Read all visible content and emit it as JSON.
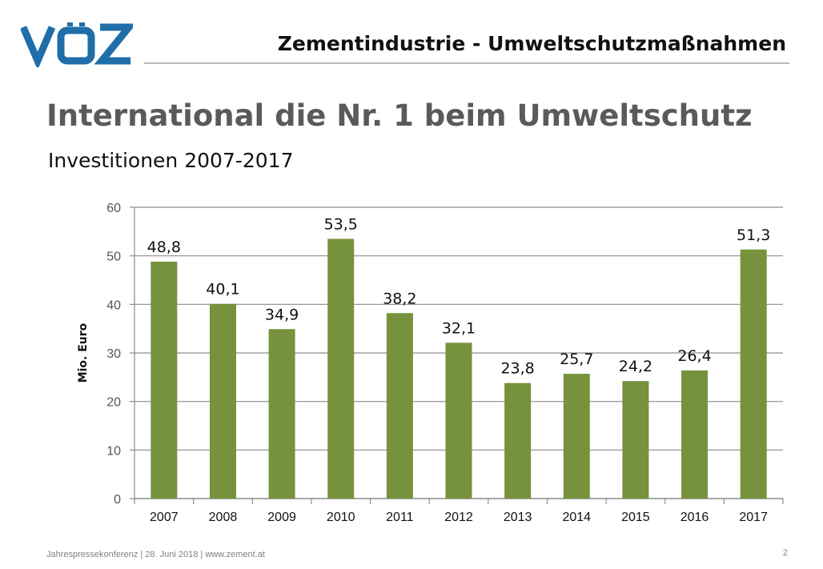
{
  "header": {
    "logo_text": "VÖZ",
    "title": "Zementindustrie - Umweltschutzmaßnahmen"
  },
  "slide": {
    "title": "International die Nr. 1 beim Umweltschutz",
    "subtitle": "Investitionen 2007-2017"
  },
  "chart_data": {
    "type": "bar",
    "categories": [
      "2007",
      "2008",
      "2009",
      "2010",
      "2011",
      "2012",
      "2013",
      "2014",
      "2015",
      "2016",
      "2017"
    ],
    "values": [
      48.8,
      40.1,
      34.9,
      53.5,
      38.2,
      32.1,
      23.8,
      25.7,
      24.2,
      26.4,
      51.3
    ],
    "data_labels": [
      "48,8",
      "40,1",
      "34,9",
      "53,5",
      "38,2",
      "32,1",
      "23,8",
      "25,7",
      "24,2",
      "26,4",
      "51,3"
    ],
    "ylabel": "Mio. Euro",
    "ylim": [
      0,
      60
    ],
    "yticks": [
      0,
      10,
      20,
      30,
      40,
      50,
      60
    ],
    "grid": true,
    "colors": {
      "bar": "#76923c",
      "grid": "#8c8c8c",
      "axis_text": "#555555"
    }
  },
  "footer": {
    "text": "Jahrespressekonferenz | 28. Juni 2018 | www.zement.at",
    "page": "2"
  }
}
